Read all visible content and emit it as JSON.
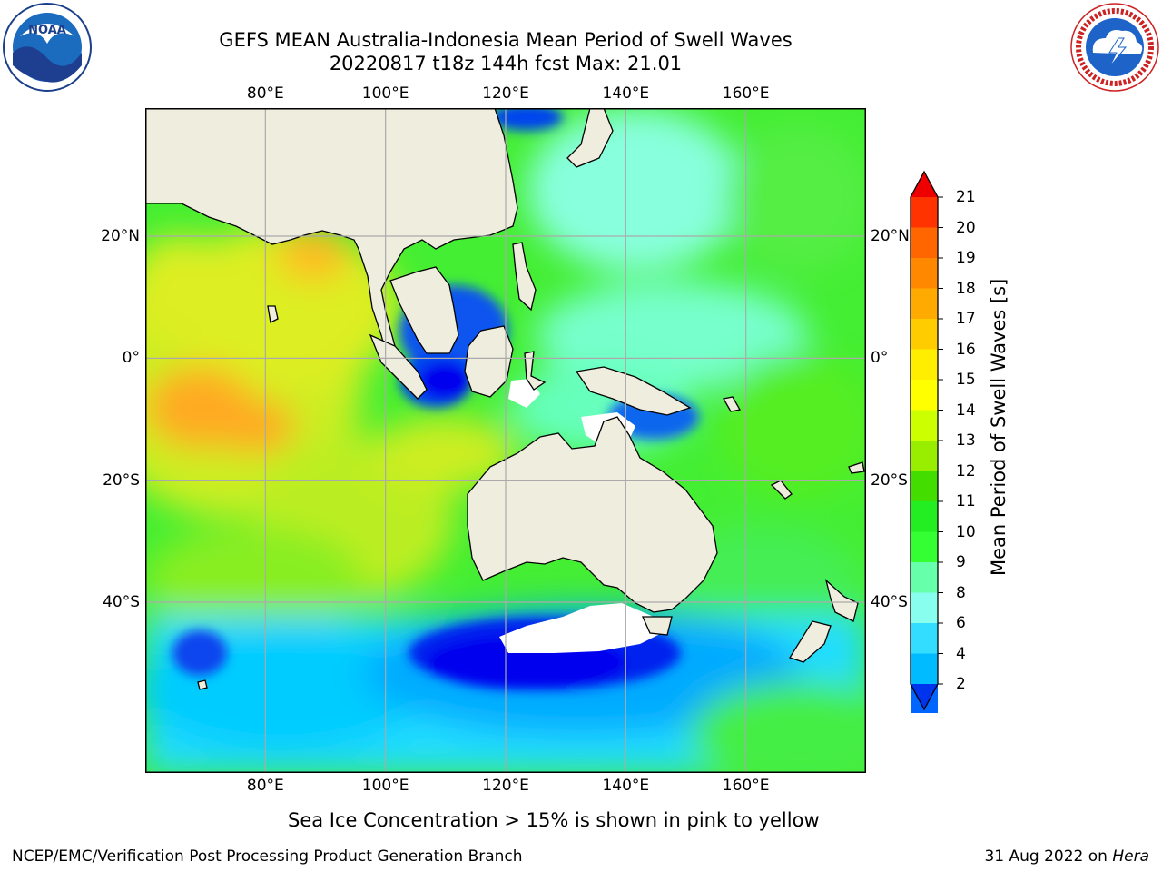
{
  "header": {
    "title_line1": "GEFS MEAN Australia-Indonesia Mean Period of Swell Waves",
    "title_line2": "20220817 t18z 144h fcst   Max: 21.01"
  },
  "logos": {
    "left": {
      "text": "NOAA",
      "ring_text": "NATIONAL OCEANIC AND ATMOSPHERIC ADMINISTRATION · U.S. DEPARTMENT OF COMMERCE",
      "icon": "noaa-logo-icon"
    },
    "right": {
      "ring_text": "NATIONAL WEATHER SERVICE",
      "icon": "nws-logo-icon"
    }
  },
  "map": {
    "lon_labels": [
      "80°E",
      "100°E",
      "120°E",
      "140°E",
      "160°E"
    ],
    "lon_values": [
      80,
      100,
      120,
      140,
      160
    ],
    "lat_labels": [
      "20°N",
      "0°",
      "20°S",
      "40°S"
    ],
    "lat_values": [
      20,
      0,
      -20,
      -40
    ],
    "lon_range": [
      60,
      180
    ],
    "lat_range": [
      -68,
      41
    ],
    "grid": true
  },
  "colorbar": {
    "label": "Mean Period of Swell Waves [s]",
    "ticks": [
      "21",
      "20",
      "19",
      "18",
      "17",
      "16",
      "15",
      "14",
      "13",
      "12",
      "11",
      "10",
      "9",
      "8",
      "6",
      "4",
      "2"
    ],
    "colors": [
      "#ff3300",
      "#ff6600",
      "#ff8800",
      "#ffaa00",
      "#ffcc00",
      "#ffee00",
      "#ffff00",
      "#ccff00",
      "#99ee00",
      "#44dd00",
      "#22ee22",
      "#33ff33",
      "#66ffaa",
      "#88ffee",
      "#33ddff",
      "#00bbff",
      "#0066ff"
    ],
    "extend_high_color": "#ee0000",
    "extend_low_color": "#0033ee"
  },
  "note": "Sea Ice Concentration > 15% is shown in pink to yellow",
  "footer": {
    "left": "NCEP/EMC/Verification Post Processing Product Generation Branch",
    "date": "31 Aug 2022 on",
    "host": "Hera"
  },
  "colors": {
    "land": "#efedde",
    "grid": "#aaaaaa",
    "blue": "#0000ee",
    "lightblue": "#00bbff",
    "cyan": "#44eeff",
    "aqua": "#88ffee",
    "green": "#33ee33",
    "yellowgreen": "#99ee22",
    "yellow": "#ddee22",
    "orange": "#ffaa22",
    "ice": "#ffffff"
  }
}
